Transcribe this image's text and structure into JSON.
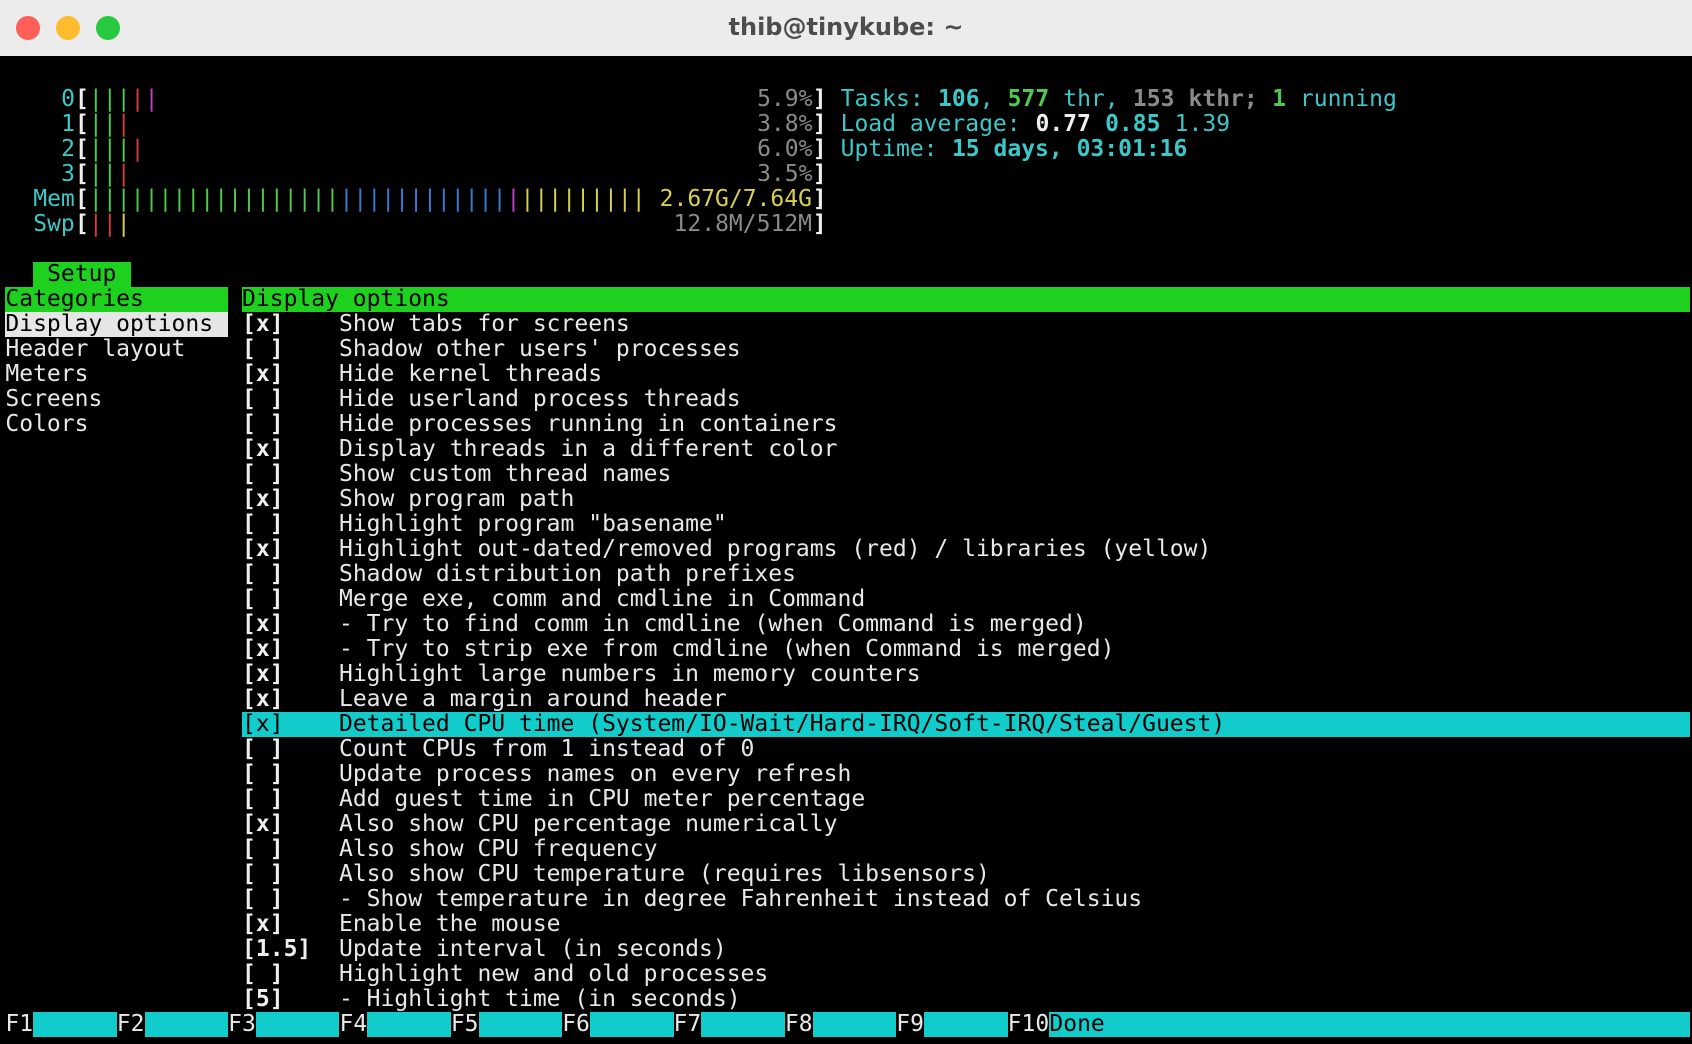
{
  "window": {
    "title": "thib@tinykube: ~",
    "traffic_lights": {
      "close": "#fe5f57",
      "minimize": "#febc2e",
      "zoom": "#28c840"
    }
  },
  "colors": {
    "cyan_text": "#3cc8c8",
    "green_bg": "#1fd11f",
    "cyan_bg": "#12cccc",
    "selected_bg": "#e6e6e6",
    "bar_green": "#4ec94e",
    "bar_red": "#d23c3c",
    "bar_magenta": "#c040c0",
    "bar_blue": "#3b7bd8",
    "bar_yellow": "#d8d050"
  },
  "meters": [
    {
      "label": "0",
      "bars": [
        "g",
        "g",
        "g",
        "r",
        "m"
      ],
      "value": "5.9%"
    },
    {
      "label": "1",
      "bars": [
        "g",
        "g",
        "r"
      ],
      "value": "3.8%"
    },
    {
      "label": "2",
      "bars": [
        "g",
        "g",
        "g",
        "r"
      ],
      "value": "6.0%"
    },
    {
      "label": "3",
      "bars": [
        "g",
        "g",
        "r"
      ],
      "value": "3.5%"
    },
    {
      "label": "Mem",
      "bars": "ggggggggggggggggggbbbbbbbbbbbbmyyyyyyyyy",
      "value": "2.67G/7.64G"
    },
    {
      "label": "Swp",
      "bars": [
        "r",
        "r",
        "y"
      ],
      "value": "12.8M/512M"
    }
  ],
  "stats": {
    "tasks_label": "Tasks: ",
    "tasks": "106",
    "sep1": ", ",
    "threads": "577",
    "thr_label": " thr, ",
    "kthreads": "153",
    "kthr_label": " kthr; ",
    "running": "1",
    "running_label": " running",
    "load_label": "Load average: ",
    "load1": "0.77",
    "load5": "0.85",
    "load15": "1.39",
    "uptime_label": "Uptime: ",
    "uptime": "15 days, 03:01:16"
  },
  "setup_tab": "Setup",
  "categories": {
    "header": "Categories",
    "items": [
      "Display options",
      "Header layout",
      "Meters",
      "Screens",
      "Colors"
    ],
    "selected": 0
  },
  "panel": {
    "header": "Display options",
    "selected": 16,
    "options": [
      {
        "box": "[x]",
        "label": "Show tabs for screens"
      },
      {
        "box": "[ ]",
        "label": "Shadow other users' processes"
      },
      {
        "box": "[x]",
        "label": "Hide kernel threads"
      },
      {
        "box": "[ ]",
        "label": "Hide userland process threads"
      },
      {
        "box": "[ ]",
        "label": "Hide processes running in containers"
      },
      {
        "box": "[x]",
        "label": "Display threads in a different color"
      },
      {
        "box": "[ ]",
        "label": "Show custom thread names"
      },
      {
        "box": "[x]",
        "label": "Show program path"
      },
      {
        "box": "[ ]",
        "label": "Highlight program \"basename\""
      },
      {
        "box": "[x]",
        "label": "Highlight out-dated/removed programs (red) / libraries (yellow)"
      },
      {
        "box": "[ ]",
        "label": "Shadow distribution path prefixes"
      },
      {
        "box": "[ ]",
        "label": "Merge exe, comm and cmdline in Command"
      },
      {
        "box": "[x]",
        "label": "- Try to find comm in cmdline (when Command is merged)"
      },
      {
        "box": "[x]",
        "label": "- Try to strip exe from cmdline (when Command is merged)"
      },
      {
        "box": "[x]",
        "label": "Highlight large numbers in memory counters"
      },
      {
        "box": "[x]",
        "label": "Leave a margin around header"
      },
      {
        "box": "[x]",
        "label": "Detailed CPU time (System/IO-Wait/Hard-IRQ/Soft-IRQ/Steal/Guest)"
      },
      {
        "box": "[ ]",
        "label": "Count CPUs from 1 instead of 0"
      },
      {
        "box": "[ ]",
        "label": "Update process names on every refresh"
      },
      {
        "box": "[ ]",
        "label": "Add guest time in CPU meter percentage"
      },
      {
        "box": "[x]",
        "label": "Also show CPU percentage numerically"
      },
      {
        "box": "[ ]",
        "label": "Also show CPU frequency"
      },
      {
        "box": "[ ]",
        "label": "Also show CPU temperature (requires libsensors)"
      },
      {
        "box": "[ ]",
        "label": "- Show temperature in degree Fahrenheit instead of Celsius"
      },
      {
        "box": "[x]",
        "label": "Enable the mouse"
      },
      {
        "box": "[1.5]",
        "label": "Update interval (in seconds)"
      },
      {
        "box": "[ ]",
        "label": "Highlight new and old processes"
      },
      {
        "box": "[5]",
        "label": "- Highlight time (in seconds)"
      }
    ]
  },
  "footer": [
    {
      "key": "F1",
      "label": ""
    },
    {
      "key": "F2",
      "label": ""
    },
    {
      "key": "F3",
      "label": ""
    },
    {
      "key": "F4",
      "label": ""
    },
    {
      "key": "F5",
      "label": ""
    },
    {
      "key": "F6",
      "label": ""
    },
    {
      "key": "F7",
      "label": ""
    },
    {
      "key": "F8",
      "label": ""
    },
    {
      "key": "F9",
      "label": ""
    },
    {
      "key": "F10",
      "label": "Done"
    }
  ]
}
